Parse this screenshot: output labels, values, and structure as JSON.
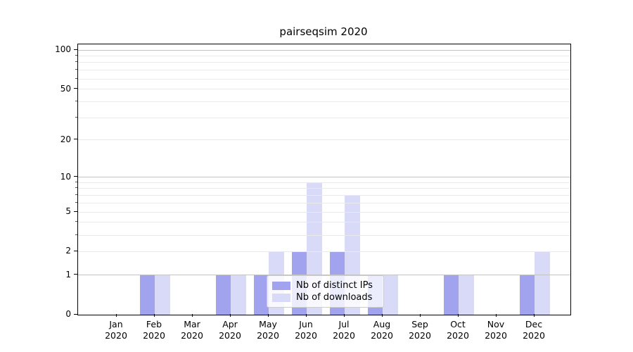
{
  "chart_data": {
    "type": "bar",
    "title": "pairseqsim 2020",
    "categories": [
      "Jan 2020",
      "Feb 2020",
      "Mar 2020",
      "Apr 2020",
      "May 2020",
      "Jun 2020",
      "Jul 2020",
      "Aug 2020",
      "Sep 2020",
      "Oct 2020",
      "Nov 2020",
      "Dec 2020"
    ],
    "series": [
      {
        "name": "Nb of distinct IPs",
        "color": "#a2a3ef",
        "values": [
          0,
          1,
          0,
          1,
          1,
          2,
          2,
          1,
          0,
          1,
          0,
          1
        ]
      },
      {
        "name": "Nb of downloads",
        "color": "#d9d9f8",
        "values": [
          0,
          1,
          0,
          1,
          2,
          9,
          7,
          1,
          0,
          1,
          0,
          2
        ]
      }
    ],
    "y_axis": {
      "scale": "log1p",
      "ticks": [
        0,
        1,
        2,
        5,
        10,
        20,
        50,
        100
      ],
      "major_gridlines": [
        1,
        10,
        100
      ],
      "minor_gridlines": [
        2,
        3,
        4,
        5,
        6,
        7,
        8,
        9,
        20,
        30,
        40,
        50,
        60,
        70,
        80,
        90
      ],
      "max": 100
    },
    "x_axis": {
      "tick_label_years": true
    },
    "legend": {
      "position": "lower center"
    },
    "grid": true,
    "colors": {
      "major_grid": "#c3c3c3",
      "minor_grid": "#eaeaea",
      "axis": "#000000",
      "background": "#ffffff"
    }
  }
}
